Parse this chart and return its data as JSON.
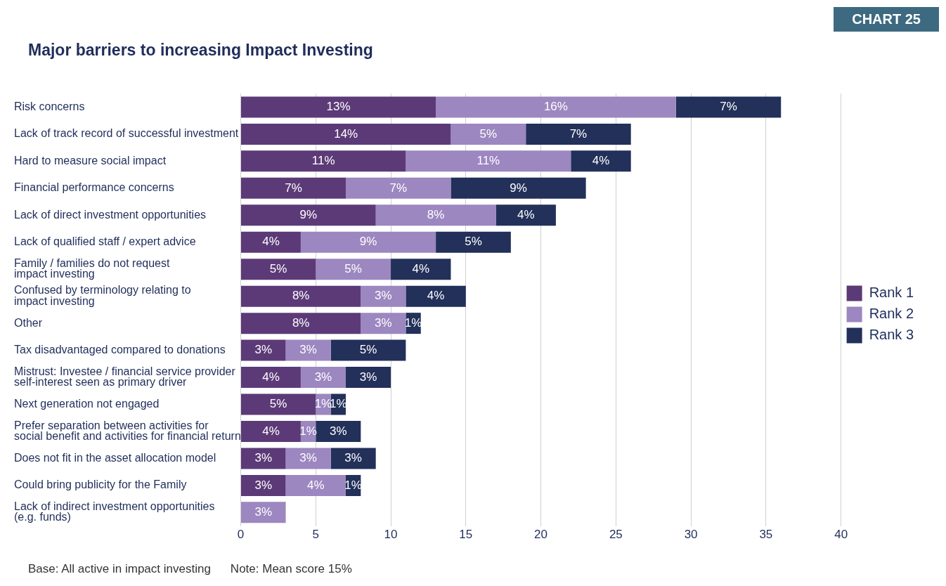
{
  "chart_data": {
    "type": "bar",
    "orientation": "horizontal",
    "stacked": true,
    "title": "Major barriers to increasing Impact Investing",
    "categories": [
      "Risk concerns",
      "Lack of track record of successful investment",
      "Hard to measure social impact",
      "Financial performance concerns",
      "Lack of direct investment opportunities",
      "Lack of qualified staff / expert advice",
      "Family / families do not request\nimpact investing",
      "Confused by terminology relating to\nimpact investing",
      "Other",
      "Tax disadvantaged compared to donations",
      "Mistrust: Investee / financial service provider\nself-interest seen as primary driver",
      "Next generation not engaged",
      "Prefer separation between activities for\nsocial benefit and activities for financial return",
      "Does not fit in the asset allocation model",
      "Could bring publicity for the Family",
      "Lack of indirect investment opportunities\n(e.g. funds)"
    ],
    "series": [
      {
        "name": "Rank 1",
        "color": "#5c3a78",
        "values": [
          13,
          14,
          11,
          7,
          9,
          4,
          5,
          8,
          8,
          3,
          4,
          5,
          4,
          3,
          3,
          null
        ],
        "value_labels": [
          "13%",
          "14%",
          "11%",
          "7%",
          "9%",
          "4%",
          "5%",
          "8%",
          "8%",
          "3%",
          "4%",
          "5%",
          "4%",
          "3%",
          "3%",
          null
        ]
      },
      {
        "name": "Rank 2",
        "color": "#9c87c0",
        "values": [
          16,
          5,
          11,
          7,
          8,
          9,
          5,
          3,
          3,
          3,
          3,
          1,
          1,
          3,
          4,
          3
        ],
        "value_labels": [
          "16%",
          "5%",
          "11%",
          "7%",
          "8%",
          "9%",
          "5%",
          "3%",
          "3%",
          "3%",
          "3%",
          "1%",
          "1%",
          "3%",
          "4%",
          "3%"
        ]
      },
      {
        "name": "Rank 3",
        "color": "#22305a",
        "values": [
          7,
          7,
          4,
          9,
          4,
          5,
          4,
          4,
          1,
          5,
          3,
          1,
          3,
          3,
          1,
          null
        ],
        "value_labels": [
          "7%",
          "7%",
          "4%",
          "9%",
          "4%",
          "5%",
          "4%",
          "4%",
          "1%",
          "5%",
          "3%",
          "1%",
          "3%",
          "3%",
          "1%",
          null
        ]
      }
    ],
    "xlim": [
      0,
      40
    ],
    "xticks": [
      0,
      5,
      10,
      15,
      20,
      25,
      30,
      35,
      40
    ],
    "grid": "x",
    "legend": "right",
    "annotations": [
      "CHART 25",
      "Base: All active in impact investing",
      "Note: Mean score 15%"
    ]
  }
}
